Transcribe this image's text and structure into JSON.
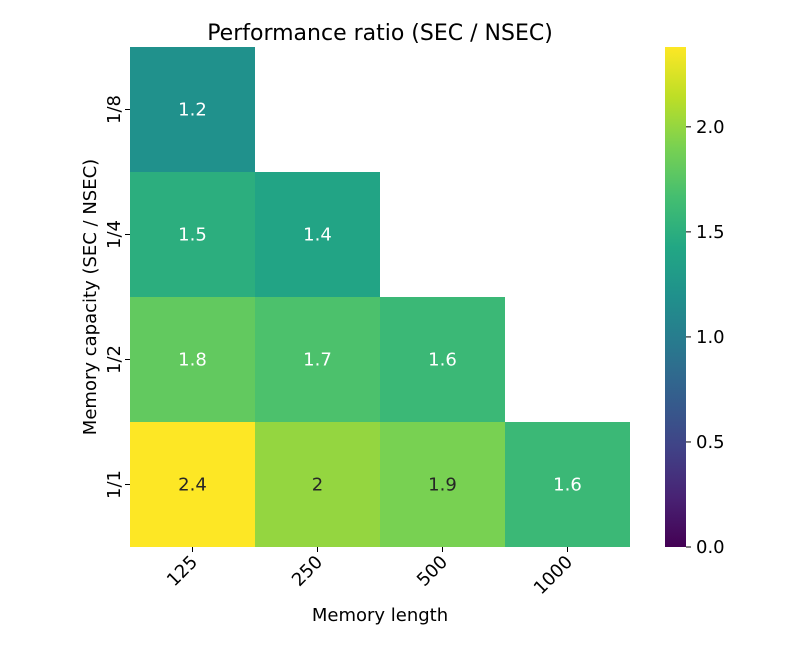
{
  "chart_data": {
    "type": "heatmap",
    "title": "Performance ratio (SEC / NSEC)",
    "xlabel": "Memory length",
    "ylabel": "Memory capacity (SEC / NSEC)",
    "x_categories": [
      "125",
      "250",
      "500",
      "1000"
    ],
    "y_categories": [
      "1/8",
      "1/4",
      "1/2",
      "1/1"
    ],
    "cells": [
      {
        "x": "125",
        "y": "1/8",
        "value": 1.2,
        "label": "1.2"
      },
      {
        "x": "125",
        "y": "1/4",
        "value": 1.5,
        "label": "1.5"
      },
      {
        "x": "250",
        "y": "1/4",
        "value": 1.4,
        "label": "1.4"
      },
      {
        "x": "125",
        "y": "1/2",
        "value": 1.8,
        "label": "1.8"
      },
      {
        "x": "250",
        "y": "1/2",
        "value": 1.7,
        "label": "1.7"
      },
      {
        "x": "500",
        "y": "1/2",
        "value": 1.6,
        "label": "1.6"
      },
      {
        "x": "125",
        "y": "1/1",
        "value": 2.4,
        "label": "2.4"
      },
      {
        "x": "250",
        "y": "1/1",
        "value": 2.0,
        "label": "2"
      },
      {
        "x": "500",
        "y": "1/1",
        "value": 1.9,
        "label": "1.9"
      },
      {
        "x": "1000",
        "y": "1/1",
        "value": 1.6,
        "label": "1.6"
      }
    ],
    "colormap": "viridis",
    "vmin": 0.0,
    "vmax": 2.38,
    "colorbar_ticks": [
      0.0,
      0.5,
      1.0,
      1.5,
      2.0
    ],
    "colorbar_tick_labels": [
      "0.0",
      "0.5",
      "1.0",
      "1.5",
      "2.0"
    ],
    "grid": false,
    "masked": "upper-triangle"
  }
}
